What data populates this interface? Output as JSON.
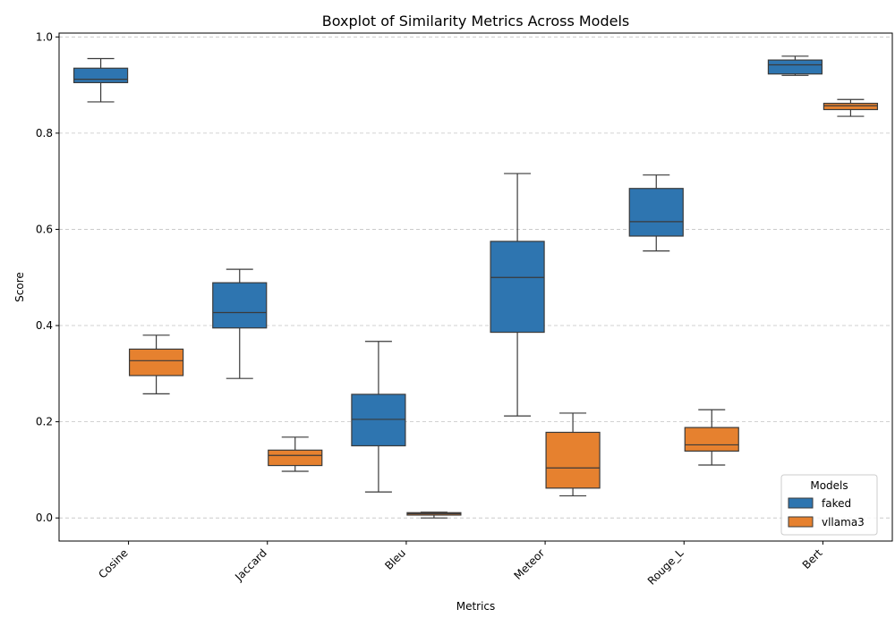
{
  "chart_data": {
    "type": "boxplot",
    "title": "Boxplot of Similarity Metrics Across Models",
    "xlabel": "Metrics",
    "ylabel": "Score",
    "ylim": [
      -0.048,
      1.008
    ],
    "yticks": [
      "0.0",
      "0.2",
      "0.4",
      "0.6",
      "0.8",
      "1.0"
    ],
    "grid": "y-dashed",
    "legend": {
      "title": "Models",
      "position": "lower-right"
    },
    "categories": [
      "Cosine",
      "Jaccard",
      "Bleu",
      "Meteor",
      "Rouge_L",
      "Bert"
    ],
    "series": [
      {
        "name": "faked",
        "color": "#2e75b0",
        "boxes": [
          {
            "whislo": 0.865,
            "q1": 0.905,
            "med": 0.912,
            "q3": 0.935,
            "whishi": 0.955
          },
          {
            "whislo": 0.29,
            "q1": 0.395,
            "med": 0.427,
            "q3": 0.489,
            "whishi": 0.517
          },
          {
            "whislo": 0.054,
            "q1": 0.15,
            "med": 0.205,
            "q3": 0.257,
            "whishi": 0.367
          },
          {
            "whislo": 0.212,
            "q1": 0.386,
            "med": 0.5,
            "q3": 0.575,
            "whishi": 0.716
          },
          {
            "whislo": 0.555,
            "q1": 0.586,
            "med": 0.616,
            "q3": 0.685,
            "whishi": 0.713
          },
          {
            "whislo": 0.92,
            "q1": 0.923,
            "med": 0.942,
            "q3": 0.952,
            "whishi": 0.96
          }
        ]
      },
      {
        "name": "vllama3",
        "color": "#e6812f",
        "boxes": [
          {
            "whislo": 0.258,
            "q1": 0.296,
            "med": 0.327,
            "q3": 0.351,
            "whishi": 0.38
          },
          {
            "whislo": 0.097,
            "q1": 0.109,
            "med": 0.13,
            "q3": 0.141,
            "whishi": 0.168
          },
          {
            "whislo": 0.0,
            "q1": 0.006,
            "med": 0.009,
            "q3": 0.011,
            "whishi": 0.012
          },
          {
            "whislo": 0.046,
            "q1": 0.062,
            "med": 0.104,
            "q3": 0.178,
            "whishi": 0.218
          },
          {
            "whislo": 0.11,
            "q1": 0.139,
            "med": 0.152,
            "q3": 0.188,
            "whishi": 0.225
          },
          {
            "whislo": 0.835,
            "q1": 0.849,
            "med": 0.857,
            "q3": 0.862,
            "whishi": 0.87
          }
        ]
      }
    ]
  }
}
